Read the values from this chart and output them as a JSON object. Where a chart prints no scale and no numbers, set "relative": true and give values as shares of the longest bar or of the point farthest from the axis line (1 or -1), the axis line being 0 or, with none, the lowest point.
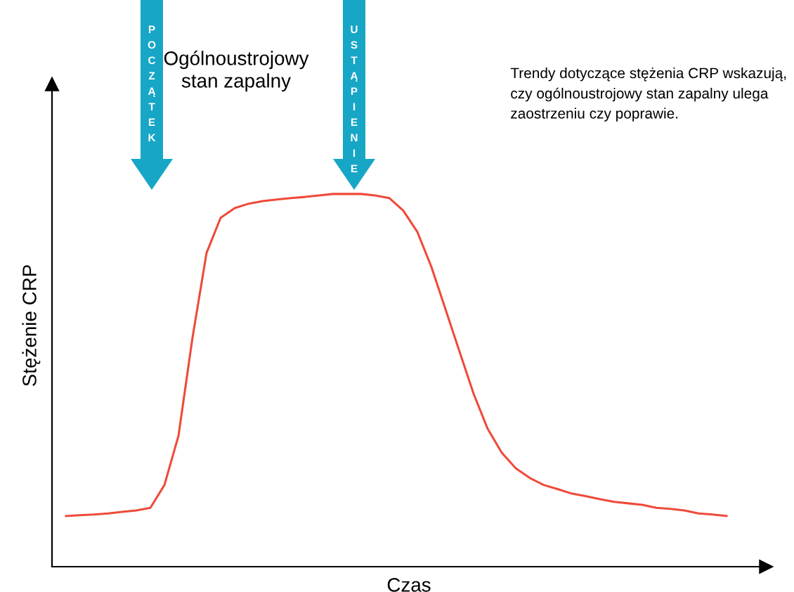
{
  "chart_data": {
    "type": "line",
    "relative": true,
    "xlabel": "Czas",
    "ylabel": "Stężenie CRP",
    "categories": [
      null,
      null,
      null,
      null,
      null,
      null,
      null,
      null,
      null,
      null,
      null,
      null,
      null,
      null,
      null,
      null,
      null,
      null,
      null,
      null,
      null,
      null,
      null,
      null,
      null,
      null,
      null,
      null,
      null,
      null,
      null,
      null,
      null,
      null,
      null,
      null,
      null,
      null,
      null,
      null,
      null,
      null,
      null,
      null,
      null,
      null,
      null,
      null
    ],
    "series": [
      {
        "color": "#ef4a3a",
        "values": [
          0.136,
          0.138,
          0.14,
          0.143,
          0.147,
          0.151,
          0.158,
          0.219,
          0.351,
          0.615,
          0.842,
          0.936,
          0.962,
          0.974,
          0.981,
          0.985,
          0.989,
          0.992,
          0.996,
          1,
          1,
          1,
          0.996,
          0.989,
          0.955,
          0.898,
          0.804,
          0.691,
          0.577,
          0.464,
          0.37,
          0.306,
          0.264,
          0.238,
          0.219,
          0.208,
          0.196,
          0.189,
          0.181,
          0.174,
          0.17,
          0.166,
          0.158,
          0.155,
          0.151,
          0.143,
          0.14,
          0.136
        ]
      }
    ],
    "annotations": [
      "POCZĄTEK",
      "Ogólnoustrojowy\nstan zapalny",
      "USTĄPIENIE",
      "Trendy dotyczące stężenia CRP wskazują,\nczy ogólnoustrojowy stan zapalny ulega\nzaostrzeniu czy poprawie."
    ],
    "grid": false,
    "legend": false,
    "marker": "none",
    "line_style": "solid"
  }
}
